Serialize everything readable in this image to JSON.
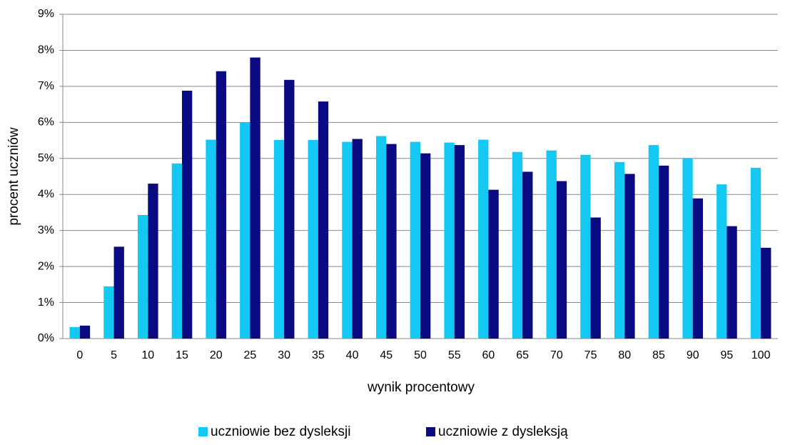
{
  "chart_data": {
    "type": "bar",
    "x_label": "wynik procentowy",
    "y_label": "procent uczniów",
    "categories": [
      "0",
      "5",
      "10",
      "15",
      "20",
      "25",
      "30",
      "35",
      "40",
      "45",
      "50",
      "55",
      "60",
      "65",
      "70",
      "75",
      "80",
      "85",
      "90",
      "95",
      "100"
    ],
    "series": [
      {
        "name": "uczniowie bez dysleksji",
        "color": "#14c8f4",
        "values": [
          0.32,
          1.45,
          3.43,
          4.86,
          5.52,
          6.0,
          5.51,
          5.51,
          5.46,
          5.62,
          5.46,
          5.44,
          5.52,
          5.18,
          5.22,
          5.1,
          4.9,
          5.37,
          5.0,
          4.28,
          4.74
        ]
      },
      {
        "name": "uczniowie z dysleksją",
        "color": "#0a0a82",
        "values": [
          0.36,
          2.55,
          4.3,
          6.88,
          7.42,
          7.8,
          7.18,
          6.58,
          5.54,
          5.4,
          5.14,
          5.37,
          4.13,
          4.63,
          4.37,
          3.36,
          4.57,
          4.8,
          3.89,
          3.12,
          2.52
        ]
      }
    ],
    "ylim": [
      0,
      9
    ],
    "yticks": [
      {
        "value": 0,
        "label": "0%"
      },
      {
        "value": 1,
        "label": "1%"
      },
      {
        "value": 2,
        "label": "2%"
      },
      {
        "value": 3,
        "label": "3%"
      },
      {
        "value": 4,
        "label": "4%"
      },
      {
        "value": 5,
        "label": "5%"
      },
      {
        "value": 6,
        "label": "6%"
      },
      {
        "value": 7,
        "label": "7%"
      },
      {
        "value": 8,
        "label": "8%"
      },
      {
        "value": 9,
        "label": "9%"
      }
    ],
    "grid": true,
    "legend": "bottom"
  }
}
